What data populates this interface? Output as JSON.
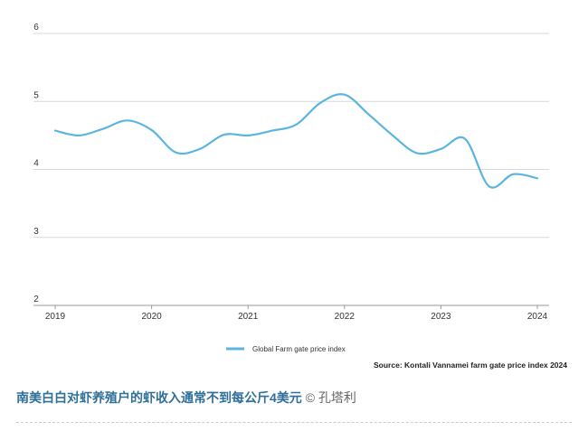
{
  "chart_data": {
    "type": "line",
    "x": [
      2019.0,
      2019.25,
      2019.5,
      2019.75,
      2020.0,
      2020.25,
      2020.5,
      2020.75,
      2021.0,
      2021.25,
      2021.5,
      2021.75,
      2022.0,
      2022.25,
      2022.5,
      2022.75,
      2023.0,
      2023.25,
      2023.5,
      2023.75,
      2024.0
    ],
    "series": [
      {
        "name": "Global Farm gate price index",
        "color": "#5bb5e0",
        "values": [
          4.57,
          4.5,
          4.6,
          4.72,
          4.58,
          4.25,
          4.3,
          4.51,
          4.5,
          4.57,
          4.66,
          4.98,
          5.1,
          4.81,
          4.5,
          4.24,
          4.3,
          4.45,
          3.75,
          3.93,
          3.87
        ]
      }
    ],
    "x_ticks": [
      "2019",
      "2020",
      "2021",
      "2022",
      "2023",
      "2024"
    ],
    "y_ticks": [
      "2",
      "3",
      "4",
      "5",
      "6"
    ],
    "xlim": [
      2019,
      2024
    ],
    "ylim": [
      2,
      6
    ],
    "grid": "horizontal",
    "legend_position": "bottom-center",
    "source": "Source: Kontali Vannamei farm gate price index 2024"
  },
  "caption": {
    "title": "南美白白对虾养殖户的虾收入通常不到每公斤4美元",
    "credit": "© 孔塔利"
  }
}
